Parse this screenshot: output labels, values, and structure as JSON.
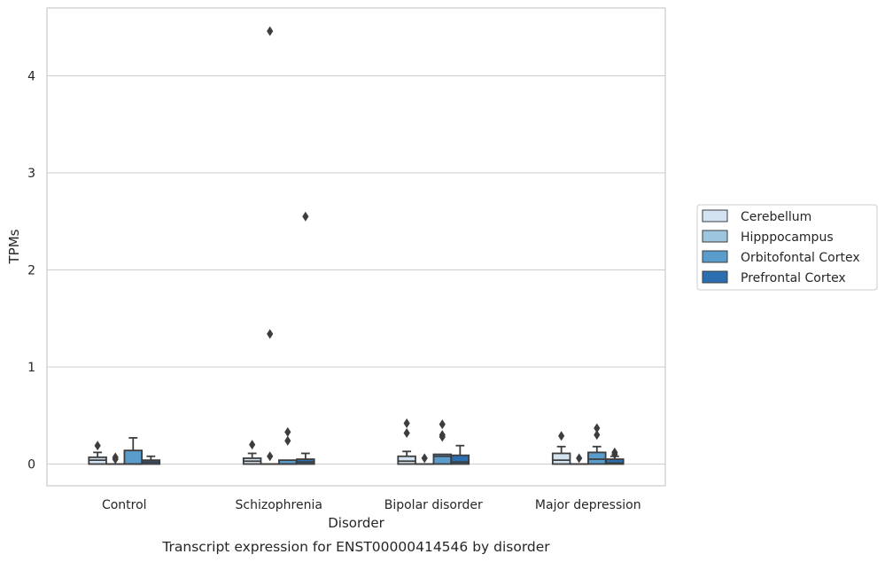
{
  "chart_data": {
    "type": "box",
    "caption": "Transcript expression for ENST00000414546 by disorder",
    "xlabel": "Disorder",
    "ylabel": "TPMs",
    "ylim": [
      -0.22,
      4.7
    ],
    "yticks": [
      0,
      1,
      2,
      3,
      4
    ],
    "grid": "horizontal",
    "legend_position": "right",
    "categories": [
      "Control",
      "Schizophrenia",
      "Bipolar disorder",
      "Major depression"
    ],
    "series": [
      {
        "name": "Cerebellum",
        "color": "#d4e3f1",
        "boxes": [
          {
            "q1": 0.0,
            "median": 0.04,
            "q3": 0.07,
            "whisker_low": 0.0,
            "whisker_high": 0.12,
            "outliers": [
              0.19
            ]
          },
          {
            "q1": 0.0,
            "median": 0.03,
            "q3": 0.06,
            "whisker_low": 0.0,
            "whisker_high": 0.11,
            "outliers": [
              0.2
            ]
          },
          {
            "q1": 0.0,
            "median": 0.03,
            "q3": 0.08,
            "whisker_low": 0.0,
            "whisker_high": 0.13,
            "outliers": [
              0.32,
              0.42
            ]
          },
          {
            "q1": 0.0,
            "median": 0.04,
            "q3": 0.11,
            "whisker_low": 0.0,
            "whisker_high": 0.18,
            "outliers": [
              0.29
            ]
          }
        ]
      },
      {
        "name": "Hipppocampus",
        "color": "#9dc5e0",
        "boxes": [
          {
            "q1": 0.0,
            "median": 0.0,
            "q3": 0.0,
            "whisker_low": 0.0,
            "whisker_high": 0.0,
            "outliers": [
              0.05,
              0.07
            ]
          },
          {
            "q1": 0.0,
            "median": 0.0,
            "q3": 0.0,
            "whisker_low": 0.0,
            "whisker_high": 0.0,
            "outliers": [
              0.08,
              1.34,
              4.46
            ]
          },
          {
            "q1": 0.0,
            "median": 0.0,
            "q3": 0.0,
            "whisker_low": 0.0,
            "whisker_high": 0.0,
            "outliers": [
              0.06
            ]
          },
          {
            "q1": 0.0,
            "median": 0.0,
            "q3": 0.0,
            "whisker_low": 0.0,
            "whisker_high": 0.0,
            "outliers": [
              0.06
            ]
          }
        ]
      },
      {
        "name": "Orbitofontal Cortex",
        "color": "#5a9ccb",
        "boxes": [
          {
            "q1": 0.0,
            "median": 0.0,
            "q3": 0.14,
            "whisker_low": 0.0,
            "whisker_high": 0.27,
            "outliers": []
          },
          {
            "q1": 0.0,
            "median": 0.0,
            "q3": 0.04,
            "whisker_low": 0.0,
            "whisker_high": 0.04,
            "outliers": [
              0.24,
              0.33
            ]
          },
          {
            "q1": 0.0,
            "median": 0.08,
            "q3": 0.1,
            "whisker_low": 0.0,
            "whisker_high": 0.1,
            "outliers": [
              0.28,
              0.3,
              0.41
            ]
          },
          {
            "q1": 0.0,
            "median": 0.05,
            "q3": 0.12,
            "whisker_low": 0.0,
            "whisker_high": 0.18,
            "outliers": [
              0.3,
              0.37
            ]
          }
        ]
      },
      {
        "name": "Prefrontal Cortex",
        "color": "#2c6fb0",
        "boxes": [
          {
            "q1": 0.0,
            "median": 0.02,
            "q3": 0.04,
            "whisker_low": 0.0,
            "whisker_high": 0.08,
            "outliers": []
          },
          {
            "q1": 0.0,
            "median": 0.02,
            "q3": 0.05,
            "whisker_low": 0.0,
            "whisker_high": 0.11,
            "outliers": [
              2.55
            ]
          },
          {
            "q1": 0.0,
            "median": 0.02,
            "q3": 0.09,
            "whisker_low": 0.0,
            "whisker_high": 0.19,
            "outliers": []
          },
          {
            "q1": 0.0,
            "median": 0.01,
            "q3": 0.05,
            "whisker_low": 0.0,
            "whisker_high": 0.08,
            "outliers": [
              0.1,
              0.12
            ]
          }
        ]
      }
    ]
  }
}
